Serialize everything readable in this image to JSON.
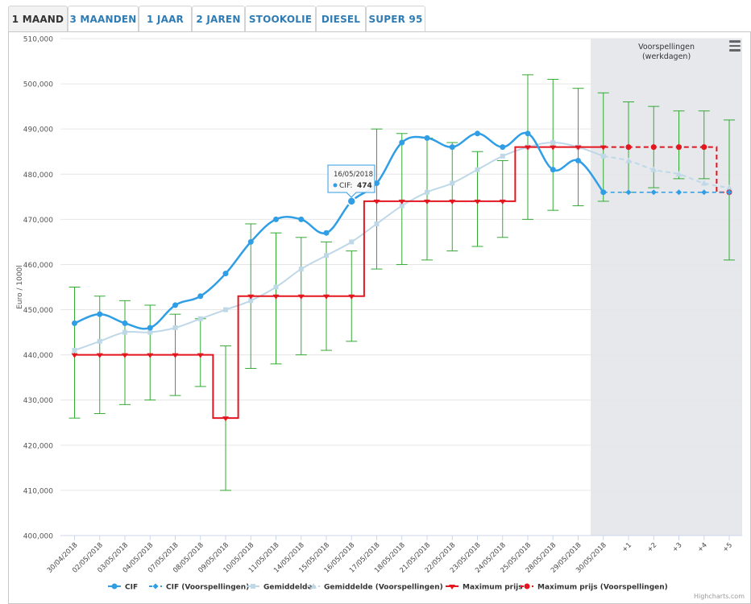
{
  "tabs": [
    {
      "label": "1 MAAND",
      "active": true
    },
    {
      "label": "3 MAANDEN",
      "active": false
    },
    {
      "label": "1 JAAR",
      "active": false
    },
    {
      "label": "2 JAREN",
      "active": false
    },
    {
      "label": "STOOKOLIE",
      "active": false
    },
    {
      "label": "DIESEL",
      "active": false
    },
    {
      "label": "SUPER 95",
      "active": false
    }
  ],
  "credit": "Highcharts.com",
  "chart_data": {
    "type": "line",
    "title": "",
    "ylabel": "Euro / 1000l",
    "ylim": [
      400000,
      510000
    ],
    "yticks": [
      "400,000",
      "410,000",
      "420,000",
      "430,000",
      "440,000",
      "450,000",
      "460,000",
      "470,000",
      "480,000",
      "490,000",
      "500,000",
      "510,000"
    ],
    "categories": [
      "30/04/2018",
      "02/05/2018",
      "03/05/2018",
      "04/05/2018",
      "07/05/2018",
      "08/05/2018",
      "09/05/2018",
      "10/05/2018",
      "11/05/2018",
      "14/05/2018",
      "15/05/2018",
      "16/05/2018",
      "17/05/2018",
      "18/05/2018",
      "21/05/2018",
      "22/05/2018",
      "23/05/2018",
      "24/05/2018",
      "25/05/2018",
      "28/05/2018",
      "29/05/2018",
      "30/05/2018",
      "+1",
      "+2",
      "+3",
      "+4",
      "+5"
    ],
    "forecast_band": {
      "label_line1": "Voorspellingen",
      "label_line2": "(werkdagen)",
      "start_index": 21
    },
    "series": [
      {
        "name": "CIF",
        "color": "#2f9ee5",
        "values": [
          447000,
          449000,
          447000,
          446000,
          451000,
          453000,
          458000,
          465000,
          470000,
          470000,
          467000,
          474000,
          478000,
          487000,
          488000,
          486000,
          489000,
          486000,
          489000,
          481000,
          483000,
          476000,
          null,
          null,
          null,
          null,
          null
        ]
      },
      {
        "name": "CIF (Voorspellingen)",
        "color": "#2f9ee5",
        "values": [
          null,
          null,
          null,
          null,
          null,
          null,
          null,
          null,
          null,
          null,
          null,
          null,
          null,
          null,
          null,
          null,
          null,
          null,
          null,
          null,
          null,
          476000,
          476000,
          476000,
          476000,
          476000,
          476000
        ]
      },
      {
        "name": "Gemiddelde",
        "color": "#bfd8e8",
        "values": [
          441000,
          443000,
          445000,
          445000,
          446000,
          448000,
          450000,
          452000,
          455000,
          459000,
          462000,
          465000,
          469000,
          473000,
          476000,
          478000,
          481000,
          484000,
          486000,
          487000,
          486000,
          484000,
          null,
          null,
          null,
          null,
          null
        ]
      },
      {
        "name": "Gemiddelde (Voorspellingen)",
        "color": "#bfd8e8",
        "values": [
          null,
          null,
          null,
          null,
          null,
          null,
          null,
          null,
          null,
          null,
          null,
          null,
          null,
          null,
          null,
          null,
          null,
          null,
          null,
          null,
          null,
          484000,
          483000,
          481000,
          480000,
          478000,
          477000
        ]
      },
      {
        "name": "Maximum prijs",
        "color": "#e3161f",
        "values": [
          440000,
          440000,
          440000,
          440000,
          440000,
          440000,
          426000,
          453000,
          453000,
          453000,
          453000,
          453000,
          474000,
          474000,
          474000,
          474000,
          474000,
          474000,
          486000,
          486000,
          486000,
          486000,
          null,
          null,
          null,
          null,
          null
        ]
      },
      {
        "name": "Maximum prijs (Voorspellingen)",
        "color": "#e3161f",
        "values": [
          null,
          null,
          null,
          null,
          null,
          null,
          null,
          null,
          null,
          null,
          null,
          null,
          null,
          null,
          null,
          null,
          null,
          null,
          null,
          null,
          null,
          486000,
          486000,
          486000,
          486000,
          486000,
          476000
        ]
      }
    ],
    "error_bars": {
      "color": "#33aa33",
      "low": [
        426000,
        427000,
        429000,
        430000,
        431000,
        433000,
        410000,
        437000,
        438000,
        440000,
        441000,
        443000,
        459000,
        460000,
        461000,
        463000,
        464000,
        466000,
        470000,
        472000,
        473000,
        474000,
        476000,
        477000,
        479000,
        479000,
        461000
      ],
      "high": [
        455000,
        453000,
        452000,
        451000,
        449000,
        448000,
        442000,
        469000,
        467000,
        466000,
        465000,
        463000,
        490000,
        489000,
        488000,
        487000,
        485000,
        483000,
        502000,
        501000,
        499000,
        498000,
        496000,
        495000,
        494000,
        494000,
        492000
      ]
    },
    "tooltip": {
      "date": "16/05/2018",
      "series": "CIF",
      "value": "474",
      "index": 11
    },
    "legend_position": "bottom",
    "grid": true
  }
}
